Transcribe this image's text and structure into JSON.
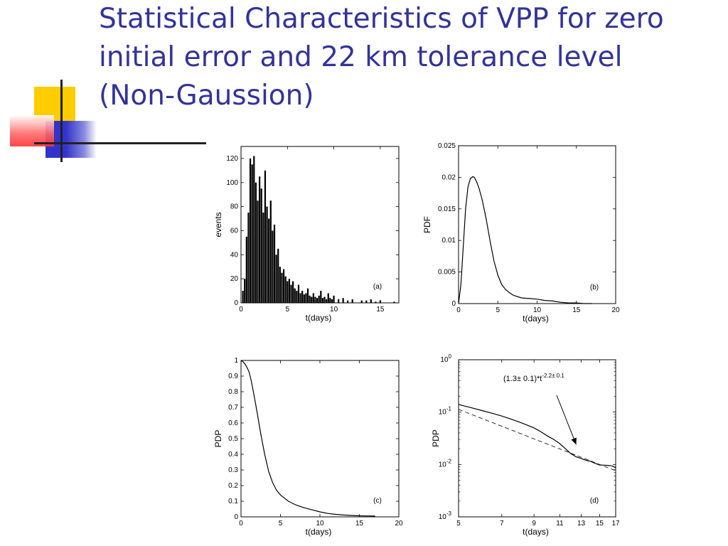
{
  "slide": {
    "title_line1": "Statistical Characteristics of VPP for zero",
    "title_line2": "initial error and 22 km tolerance level",
    "title_line3": "(Non-Gaussion)"
  },
  "colors": {
    "title": "#333399",
    "deco_yellow": "#ffcc00",
    "deco_blue": "#3333cc",
    "deco_red": "#ff3333"
  },
  "chart_data": [
    {
      "id": "a",
      "type": "bar",
      "label": "(a)",
      "xlabel": "t(days)",
      "ylabel": "events",
      "xlim": [
        0,
        17
      ],
      "ylim": [
        0,
        130
      ],
      "xticks": [
        0,
        5,
        10,
        15
      ],
      "yticks": [
        0,
        20,
        40,
        60,
        80,
        100,
        120
      ],
      "bin_width": 0.17,
      "x": [
        0.2,
        0.4,
        0.6,
        0.8,
        1.0,
        1.2,
        1.4,
        1.6,
        1.8,
        2.0,
        2.2,
        2.4,
        2.6,
        2.8,
        3.0,
        3.2,
        3.4,
        3.6,
        3.8,
        4.0,
        4.2,
        4.4,
        4.6,
        4.8,
        5.0,
        5.2,
        5.4,
        5.6,
        5.8,
        6.0,
        6.2,
        6.4,
        6.6,
        6.8,
        7.0,
        7.2,
        7.4,
        7.6,
        7.8,
        8.0,
        8.2,
        8.4,
        8.6,
        8.8,
        9.0,
        9.2,
        9.4,
        9.6,
        9.8,
        10.0,
        10.5,
        11.0,
        11.5,
        12.0,
        13.0,
        13.5,
        14.0,
        14.5,
        15.0,
        16.5
      ],
      "values": [
        10,
        20,
        55,
        75,
        120,
        115,
        122,
        100,
        85,
        105,
        95,
        75,
        110,
        80,
        70,
        85,
        60,
        65,
        40,
        45,
        30,
        25,
        28,
        22,
        18,
        20,
        15,
        18,
        12,
        10,
        15,
        8,
        10,
        7,
        8,
        12,
        6,
        5,
        8,
        5,
        4,
        6,
        10,
        4,
        5,
        3,
        8,
        4,
        3,
        6,
        3,
        4,
        2,
        3,
        2,
        2,
        3,
        1,
        2,
        1
      ]
    },
    {
      "id": "b",
      "type": "line",
      "label": "(b)",
      "xlabel": "t(days)",
      "ylabel": "PDF",
      "xlim": [
        0,
        20
      ],
      "ylim": [
        0,
        0.025
      ],
      "xticks": [
        0,
        5,
        10,
        15,
        20
      ],
      "yticks": [
        0,
        0.005,
        0.01,
        0.015,
        0.02,
        0.025
      ],
      "x": [
        0,
        0.3,
        0.6,
        0.9,
        1.2,
        1.5,
        1.8,
        2.0,
        2.3,
        2.6,
        3.0,
        3.5,
        4.0,
        4.5,
        5.0,
        5.5,
        6.0,
        6.5,
        7.0,
        8.0,
        9.0,
        10.0,
        11.0,
        12.0,
        13.0,
        14.0,
        15.0,
        16.0,
        17.0
      ],
      "y": [
        0,
        0.003,
        0.009,
        0.015,
        0.0185,
        0.0198,
        0.0201,
        0.02,
        0.0193,
        0.0183,
        0.0165,
        0.0135,
        0.01,
        0.0068,
        0.0045,
        0.003,
        0.0022,
        0.0017,
        0.0013,
        0.0009,
        0.0008,
        0.0007,
        0.0005,
        0.0004,
        0.0002,
        0.0001,
        0.0001,
        0,
        0
      ]
    },
    {
      "id": "c",
      "type": "line",
      "label": "(c)",
      "xlabel": "t(days)",
      "ylabel": "PDP",
      "xlim": [
        0,
        20
      ],
      "ylim": [
        0,
        1
      ],
      "xticks": [
        0,
        5,
        10,
        15,
        20
      ],
      "yticks": [
        0,
        0.1,
        0.2,
        0.3,
        0.4,
        0.5,
        0.6,
        0.7,
        0.8,
        0.9,
        1
      ],
      "x": [
        0,
        0.3,
        0.6,
        1.0,
        1.3,
        1.6,
        2.0,
        2.5,
        3.0,
        3.5,
        4.0,
        4.5,
        5.0,
        6.0,
        7.0,
        8.0,
        9.0,
        10.0,
        11.0,
        12.0,
        13.0,
        14.0,
        15.0,
        16.0,
        17.0
      ],
      "y": [
        1.0,
        0.99,
        0.97,
        0.93,
        0.87,
        0.79,
        0.68,
        0.53,
        0.4,
        0.29,
        0.22,
        0.17,
        0.14,
        0.1,
        0.075,
        0.058,
        0.045,
        0.032,
        0.022,
        0.016,
        0.012,
        0.009,
        0.007,
        0.006,
        0.005
      ]
    },
    {
      "id": "d",
      "type": "line",
      "label": "(d)",
      "xlabel": "t(days)",
      "ylabel": "PDP",
      "xscale": "log",
      "yscale": "log",
      "xlim": [
        5,
        17
      ],
      "ylim": [
        0.001,
        1
      ],
      "xticks": [
        5,
        7,
        9,
        11,
        13,
        15,
        17
      ],
      "yticks": [
        {
          "value": 0.001,
          "base": "10",
          "exp": "-3"
        },
        {
          "value": 0.01,
          "base": "10",
          "exp": "-2"
        },
        {
          "value": 0.1,
          "base": "10",
          "exp": "-1"
        },
        {
          "value": 1,
          "base": "10",
          "exp": "0"
        }
      ],
      "series": [
        {
          "style": "solid",
          "x": [
            5.0,
            5.5,
            6.0,
            6.5,
            7.0,
            7.5,
            8.0,
            8.5,
            9.0,
            9.5,
            10.0,
            10.5,
            11.0,
            11.5,
            12.0,
            12.5,
            13.0,
            13.5,
            14.0,
            14.5,
            15.0,
            15.5,
            16.0,
            16.5,
            17.0
          ],
          "y": [
            0.14,
            0.122,
            0.107,
            0.095,
            0.084,
            0.074,
            0.065,
            0.057,
            0.05,
            0.042,
            0.035,
            0.03,
            0.025,
            0.02,
            0.016,
            0.014,
            0.013,
            0.012,
            0.0115,
            0.0105,
            0.0098,
            0.0097,
            0.0096,
            0.0094,
            0.0087
          ]
        },
        {
          "style": "dashed",
          "x": [
            5,
            17
          ],
          "y": [
            0.113,
            0.0076
          ]
        }
      ],
      "annotation": {
        "text_pre": "(1.3± 0.1)*t",
        "text_sup": "-2.2± 0.1",
        "points_to": [
          12.5,
          0.024
        ]
      }
    }
  ]
}
